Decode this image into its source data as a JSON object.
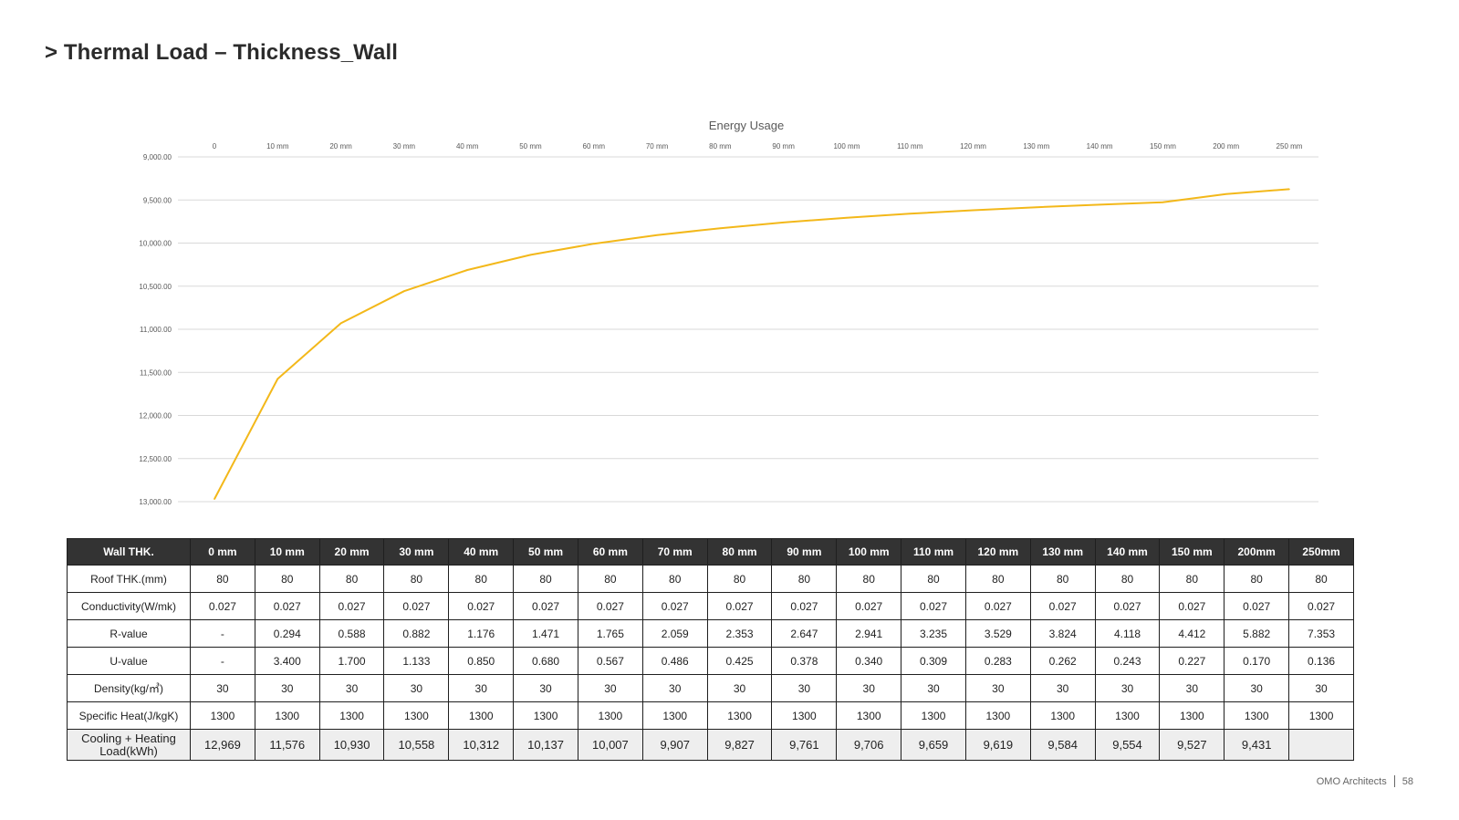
{
  "page_title": "> Thermal Load – Thickness_Wall",
  "footer": {
    "company": "OMO Architects",
    "page_number": "58"
  },
  "colors": {
    "line": "#F3B81A",
    "header_bg": "#333333",
    "load_row_bg": "#EEEEEE"
  },
  "chart_data": {
    "type": "line",
    "title": "Energy Usage",
    "categories": [
      "0",
      "10 mm",
      "20 mm",
      "30 mm",
      "40 mm",
      "50 mm",
      "60 mm",
      "70 mm",
      "80 mm",
      "90 mm",
      "100 mm",
      "110 mm",
      "120 mm",
      "130 mm",
      "140 mm",
      "150 mm",
      "200 mm",
      "250 mm"
    ],
    "series": [
      {
        "values": [
          12969,
          11576,
          10930,
          10558,
          10312,
          10137,
          10007,
          9907,
          9827,
          9761,
          9706,
          9659,
          9619,
          9584,
          9554,
          9527,
          9431,
          9375
        ]
      }
    ],
    "y_ticks": [
      "9,000.00",
      "9,500.00",
      "10,000.00",
      "10,500.00",
      "11,000.00",
      "11,500.00",
      "12,000.00",
      "12,500.00",
      "13,000.00"
    ],
    "ylim": [
      9000,
      13000
    ],
    "y_axis_inverted": true,
    "x_axis_position": "top",
    "grid": true,
    "legend": "none"
  },
  "table": {
    "header_label": "Wall THK.",
    "columns": [
      "0 mm",
      "10 mm",
      "20 mm",
      "30 mm",
      "40 mm",
      "50 mm",
      "60 mm",
      "70 mm",
      "80 mm",
      "90 mm",
      "100 mm",
      "110 mm",
      "120 mm",
      "130 mm",
      "140 mm",
      "150 mm",
      "200mm",
      "250mm"
    ],
    "rows": [
      {
        "label": "Roof THK.(mm)",
        "values": [
          "80",
          "80",
          "80",
          "80",
          "80",
          "80",
          "80",
          "80",
          "80",
          "80",
          "80",
          "80",
          "80",
          "80",
          "80",
          "80",
          "80",
          "80"
        ]
      },
      {
        "label": "Conductivity(W/mk)",
        "values": [
          "0.027",
          "0.027",
          "0.027",
          "0.027",
          "0.027",
          "0.027",
          "0.027",
          "0.027",
          "0.027",
          "0.027",
          "0.027",
          "0.027",
          "0.027",
          "0.027",
          "0.027",
          "0.027",
          "0.027",
          "0.027"
        ]
      },
      {
        "label": "R-value",
        "values": [
          "-",
          "0.294",
          "0.588",
          "0.882",
          "1.176",
          "1.471",
          "1.765",
          "2.059",
          "2.353",
          "2.647",
          "2.941",
          "3.235",
          "3.529",
          "3.824",
          "4.118",
          "4.412",
          "5.882",
          "7.353"
        ]
      },
      {
        "label": "U-value",
        "values": [
          "-",
          "3.400",
          "1.700",
          "1.133",
          "0.850",
          "0.680",
          "0.567",
          "0.486",
          "0.425",
          "0.378",
          "0.340",
          "0.309",
          "0.283",
          "0.262",
          "0.243",
          "0.227",
          "0.170",
          "0.136"
        ]
      },
      {
        "label": "Density(kg/㎥)",
        "values": [
          "30",
          "30",
          "30",
          "30",
          "30",
          "30",
          "30",
          "30",
          "30",
          "30",
          "30",
          "30",
          "30",
          "30",
          "30",
          "30",
          "30",
          "30"
        ]
      },
      {
        "label": "Specific Heat(J/kgK)",
        "values": [
          "1300",
          "1300",
          "1300",
          "1300",
          "1300",
          "1300",
          "1300",
          "1300",
          "1300",
          "1300",
          "1300",
          "1300",
          "1300",
          "1300",
          "1300",
          "1300",
          "1300",
          "1300"
        ]
      },
      {
        "label": "Cooling + Heating Load(kWh)",
        "values": [
          "12,969",
          "11,576",
          "10,930",
          "10,558",
          "10,312",
          "10,137",
          "10,007",
          "9,907",
          "9,827",
          "9,761",
          "9,706",
          "9,659",
          "9,619",
          "9,584",
          "9,554",
          "9,527",
          "9,431",
          ""
        ]
      }
    ]
  }
}
